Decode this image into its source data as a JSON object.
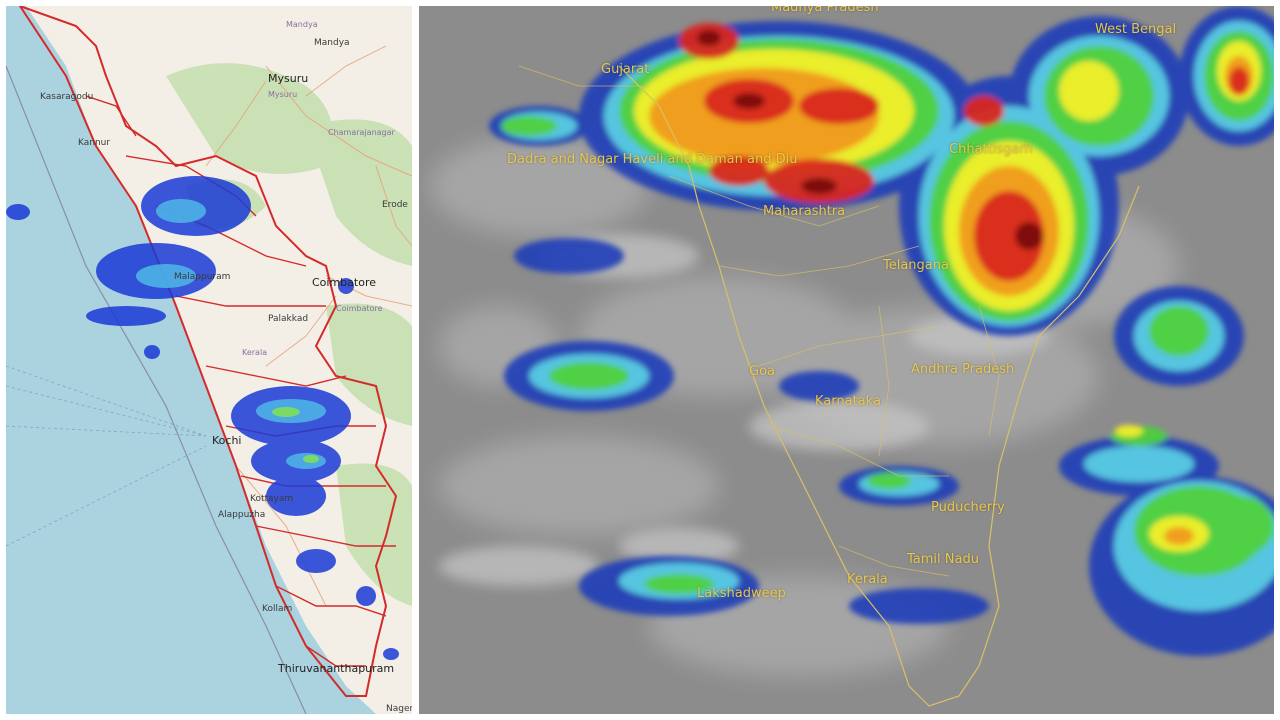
{
  "left_map": {
    "labels": {
      "mandya_top": "Mandya",
      "mandya": "Mandya",
      "mysuru": "Mysuru",
      "mysuru_small": "Mysuru",
      "chamarajanagar": "Chamarajanagar",
      "kasaragod": "Kasaragodu",
      "kannur": "Kannur",
      "erode": "Erode",
      "coimbatore": "Coimbatore",
      "coimbatore_small": "Coimbatore",
      "malappuram": "Malappuram",
      "palakkad": "Palakkad",
      "kerala": "Kerala",
      "kochi": "Kochi",
      "kottayam": "Kottayam",
      "alappuzha": "Alappuzha",
      "kollam": "Kollam",
      "thiruvananthapuram": "Thiruvananthapuram",
      "nagercoil": "Nager"
    },
    "colors": {
      "land": "#f3efe7",
      "sea": "#aad3df",
      "district_border": "#d42a2a",
      "rain_low": "#1b3bd6",
      "rain_mid": "#4fb7e8",
      "rain_high": "#7fe05a"
    }
  },
  "right_map": {
    "labels": {
      "madhya_pradesh": "Madhya Pradesh",
      "gujarat": "Gujarat",
      "west_bengal": "West Bengal",
      "dadra": "Dadra and Nagar Haveli and Daman and Diu",
      "chhattisgarh": "Chhattisgarh",
      "maharashtra": "Maharashtra",
      "telangana": "Telangana",
      "andhra_pradesh": "Andhra Pradesh",
      "goa": "Goa",
      "karnataka": "Karnataka",
      "puducherry": "Puducherry",
      "tamil_nadu": "Tamil Nadu",
      "kerala": "Kerala",
      "lakshadweep": "Lakshadweep"
    },
    "colors": {
      "background": "#8c8c8c",
      "label": "#e8c64a",
      "cloud_blue": "#1f3fb8",
      "cloud_cyan": "#5bd3e6",
      "cloud_green": "#4fd03c",
      "cloud_yellow": "#f2ef2a",
      "cloud_red": "#d8281e"
    }
  }
}
